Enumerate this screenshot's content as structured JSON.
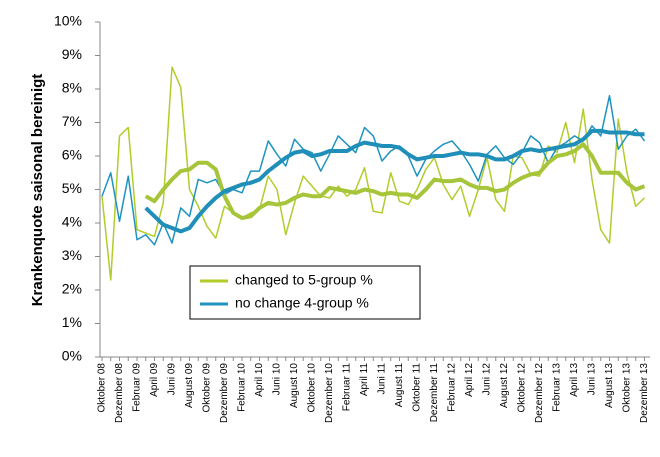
{
  "chart_data": {
    "type": "line",
    "ylabel": "Krankenquote saisonal bereinigt",
    "categories": [
      "Oktober 08",
      null,
      "Dezember 08",
      null,
      "Februar 09",
      null,
      "April 09",
      null,
      "Juni 09",
      null,
      "August 09",
      null,
      "Oktober 09",
      null,
      "Dezember 09",
      null,
      "Februar 10",
      null,
      "April 10",
      null,
      "Juni 10",
      null,
      "August 10",
      null,
      "Oktober 10",
      null,
      "Dezember 10",
      null,
      "Februar 11",
      null,
      "April 11",
      null,
      "Juni 11",
      null,
      "August 11",
      null,
      "Oktober 11",
      null,
      "Dezember 11",
      null,
      "Februar 12",
      null,
      "April 12",
      null,
      "Juni 12",
      null,
      "August 12",
      null,
      "Oktober 12",
      null,
      "Dezember 12",
      null,
      "Februar 13",
      null,
      "April 13",
      null,
      "Juni 13",
      null,
      "August 13",
      null,
      "Oktober 13",
      null,
      "Dezember 13"
    ],
    "series": [
      {
        "name": "changed to 5-group %",
        "color": "#b2cc2a",
        "width": 1.5,
        "values": [
          4.8,
          2.3,
          6.6,
          6.85,
          3.8,
          3.7,
          3.6,
          4.6,
          8.65,
          8.05,
          5.0,
          4.5,
          3.9,
          3.55,
          4.5,
          4.3,
          4.15,
          4.3,
          4.4,
          5.4,
          5.0,
          3.65,
          4.6,
          5.4,
          5.1,
          4.8,
          4.75,
          5.1,
          4.8,
          5.0,
          5.65,
          4.35,
          4.3,
          5.5,
          4.65,
          4.55,
          5.0,
          5.6,
          5.95,
          5.15,
          4.7,
          5.1,
          4.2,
          5.0,
          5.95,
          4.7,
          4.35,
          6.0,
          5.95,
          5.45,
          5.4,
          6.3,
          6.1,
          7.0,
          5.8,
          7.4,
          5.3,
          3.8,
          3.4,
          7.1,
          5.5,
          4.5,
          4.75
        ]
      },
      {
        "name": "no change 4-group %",
        "color": "#1f93c0",
        "width": 1.5,
        "values": [
          4.8,
          5.5,
          4.05,
          5.4,
          3.5,
          3.65,
          3.35,
          4.0,
          3.4,
          4.45,
          4.2,
          5.3,
          5.2,
          5.3,
          4.85,
          5.0,
          4.9,
          5.55,
          5.55,
          6.45,
          6.05,
          5.7,
          6.5,
          6.2,
          6.1,
          5.55,
          6.05,
          6.6,
          6.35,
          6.1,
          6.85,
          6.6,
          5.85,
          6.15,
          6.3,
          6.0,
          5.4,
          5.9,
          6.15,
          6.35,
          6.45,
          6.15,
          5.75,
          5.25,
          6.05,
          6.3,
          5.95,
          5.75,
          6.1,
          6.6,
          6.4,
          5.8,
          6.25,
          6.4,
          6.6,
          6.45,
          6.9,
          6.6,
          7.8,
          6.2,
          6.6,
          6.8,
          6.45
        ]
      },
      {
        "color": "#a6c53a",
        "width": 4,
        "values": [
          null,
          null,
          null,
          null,
          null,
          4.8,
          4.65,
          5.0,
          5.3,
          5.55,
          5.6,
          5.8,
          5.8,
          5.6,
          4.8,
          4.3,
          4.15,
          4.2,
          4.45,
          4.6,
          4.55,
          4.6,
          4.75,
          4.85,
          4.8,
          4.8,
          5.05,
          5.0,
          4.95,
          4.9,
          5.0,
          4.95,
          4.85,
          4.9,
          4.85,
          4.85,
          4.75,
          5.0,
          5.3,
          5.25,
          5.25,
          5.3,
          5.15,
          5.05,
          5.05,
          4.95,
          5.0,
          5.2,
          5.35,
          5.45,
          5.5,
          5.8,
          6.0,
          6.05,
          6.15,
          6.35,
          6.0,
          5.5,
          5.5,
          5.5,
          5.2,
          5.0,
          5.1
        ]
      },
      {
        "color": "#1f8fba",
        "width": 4,
        "values": [
          null,
          null,
          null,
          null,
          null,
          4.45,
          4.2,
          3.95,
          3.85,
          3.75,
          3.85,
          4.2,
          4.5,
          4.75,
          4.95,
          5.05,
          5.15,
          5.2,
          5.3,
          5.55,
          5.75,
          5.95,
          6.1,
          6.15,
          6.0,
          6.05,
          6.15,
          6.15,
          6.15,
          6.3,
          6.4,
          6.35,
          6.3,
          6.3,
          6.25,
          6.05,
          5.9,
          5.95,
          6.0,
          6.0,
          6.05,
          6.1,
          6.05,
          6.05,
          6.0,
          5.9,
          5.9,
          6.0,
          6.15,
          6.2,
          6.15,
          6.2,
          6.25,
          6.3,
          6.35,
          6.5,
          6.75,
          6.75,
          6.7,
          6.7,
          6.7,
          6.65,
          6.65
        ]
      }
    ],
    "ylim": [
      0,
      10
    ],
    "yticks": [
      {
        "value": 0,
        "label": "0%"
      },
      {
        "value": 1,
        "label": "1%"
      },
      {
        "value": 2,
        "label": "2%"
      },
      {
        "value": 3,
        "label": "3%"
      },
      {
        "value": 4,
        "label": "4%"
      },
      {
        "value": 5,
        "label": "5%"
      },
      {
        "value": 6,
        "label": "6%"
      },
      {
        "value": 7,
        "label": "7%"
      },
      {
        "value": 8,
        "label": "8%"
      },
      {
        "value": 9,
        "label": "9%"
      },
      {
        "value": 10,
        "label": "10%"
      }
    ],
    "grid": false
  }
}
